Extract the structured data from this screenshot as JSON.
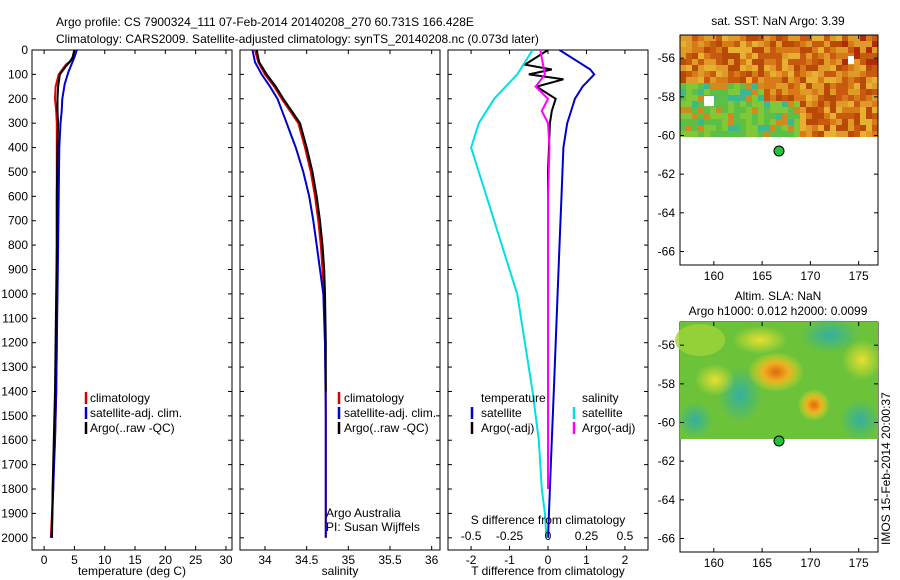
{
  "header": {
    "line1": "Argo profile: CS 7900324_111 07-Feb-2014 20140208_270 60.731S 166.428E",
    "line2": "Climatology: CARS2009. Satellite-adjusted climatology: synTS_20140208.nc (0.073d later)"
  },
  "footer_stamp": "IMOS 15-Feb-2014 20:00:37",
  "chart_data": [
    {
      "type": "line",
      "xlabel": "temperature (deg C)",
      "xlim": [
        -2,
        31
      ],
      "ylim": [
        2050,
        0
      ],
      "x_ticks": [
        0,
        5,
        10,
        15,
        20,
        25,
        30
      ],
      "y_ticks": [
        0,
        100,
        200,
        300,
        400,
        500,
        600,
        700,
        800,
        900,
        1000,
        1100,
        1200,
        1300,
        1400,
        1500,
        1600,
        1700,
        1800,
        1900,
        2000
      ],
      "legend": [
        "climatology",
        "satellite-adj. clim.",
        "Argo(..raw -QC)"
      ],
      "series": [
        {
          "name": "climatology",
          "color": "#dd0000",
          "x": [
            5.0,
            4.6,
            3.6,
            2.4,
            1.9,
            1.8,
            2.0,
            2.1,
            2.1,
            2.1,
            2.1,
            2.1,
            2.1,
            2.0,
            1.9,
            1.8,
            1.6,
            1.5,
            1.3,
            1.1
          ],
          "y": [
            0,
            40,
            60,
            100,
            150,
            200,
            250,
            300,
            400,
            600,
            800,
            1000,
            1200,
            1400,
            1500,
            1600,
            1700,
            1800,
            1900,
            2000
          ]
        },
        {
          "name": "satellite-adj. clim.",
          "color": "#0000cc",
          "x": [
            5.4,
            5.0,
            4.5,
            4.0,
            3.4,
            3.0,
            2.9,
            2.7,
            2.5,
            2.4,
            2.3,
            2.2,
            2.1,
            2.0,
            1.8,
            1.5,
            1.3,
            1.2
          ],
          "y": [
            0,
            30,
            60,
            90,
            140,
            200,
            250,
            300,
            400,
            600,
            800,
            1000,
            1200,
            1400,
            1600,
            1800,
            1950,
            2000
          ]
        },
        {
          "name": "Argo(..raw -QC)",
          "color": "#000000",
          "x": [
            5.0,
            4.7,
            4.2,
            3.5,
            2.6,
            2.3,
            2.2,
            2.2,
            2.3,
            2.2,
            2.1,
            2.1,
            2.0,
            1.9,
            1.8,
            1.6,
            1.4,
            1.3
          ],
          "y": [
            0,
            30,
            50,
            70,
            100,
            150,
            200,
            250,
            300,
            400,
            600,
            800,
            1000,
            1200,
            1400,
            1600,
            1800,
            2000
          ]
        }
      ]
    },
    {
      "type": "line",
      "xlabel": "salinity",
      "xlim": [
        33.7,
        36.1
      ],
      "ylim": [
        2050,
        0
      ],
      "x_ticks": [
        34,
        34.5,
        35,
        35.5,
        36
      ],
      "legend": [
        "climatology",
        "satellite-adj. clim.",
        "Argo(..raw -QC)"
      ],
      "annotation": [
        "Argo Australia",
        "PI: Susan Wijffels"
      ],
      "series": [
        {
          "name": "climatology",
          "color": "#dd0000",
          "x": [
            33.88,
            33.92,
            34.0,
            34.11,
            34.2,
            34.3,
            34.4,
            34.48,
            34.55,
            34.6,
            34.64,
            34.67,
            34.69,
            34.71,
            34.72,
            34.73,
            34.73,
            34.73
          ],
          "y": [
            0,
            50,
            100,
            150,
            200,
            250,
            300,
            400,
            500,
            600,
            700,
            800,
            900,
            1000,
            1200,
            1400,
            1700,
            2000
          ]
        },
        {
          "name": "satellite-adj. clim.",
          "color": "#0000cc",
          "x": [
            33.85,
            33.88,
            33.96,
            34.06,
            34.15,
            34.26,
            34.37,
            34.46,
            34.53,
            34.58,
            34.62,
            34.66,
            34.7,
            34.72,
            34.73,
            34.73
          ],
          "y": [
            0,
            50,
            100,
            150,
            200,
            300,
            400,
            500,
            600,
            700,
            800,
            900,
            1000,
            1200,
            1500,
            2000
          ]
        },
        {
          "name": "Argo(..raw -QC)",
          "color": "#000000",
          "x": [
            33.9,
            33.93,
            34.02,
            34.13,
            34.22,
            34.32,
            34.42,
            34.5,
            34.57,
            34.62,
            34.66,
            34.69,
            34.71,
            34.72,
            34.73,
            34.73
          ],
          "y": [
            0,
            50,
            100,
            150,
            200,
            250,
            300,
            400,
            500,
            600,
            700,
            800,
            900,
            1000,
            1200,
            1400
          ]
        }
      ]
    },
    {
      "type": "line",
      "xlabel": "T difference from climatology",
      "x2label": "S difference from climatology",
      "xlim": [
        -2.6,
        2.6
      ],
      "x_ticks": [
        -2,
        -1,
        0,
        1,
        2
      ],
      "x2_ticks": [
        -0.5,
        -0.25,
        0,
        0.25,
        0.5
      ],
      "x2_tick_labels": [
        "-0.5",
        "-0.25",
        "0",
        "0.25",
        "0.5"
      ],
      "ylim": [
        2050,
        0
      ],
      "legend_groups": [
        {
          "title": "temperature",
          "items": [
            "satellite",
            "Argo(-adj)"
          ]
        },
        {
          "title": "salinity",
          "items": [
            "satellite",
            "Argo(-adj)"
          ]
        }
      ],
      "series": [
        {
          "name": "temperature satellite",
          "color": "#0000cc",
          "x": [
            0.3,
            0.8,
            1.1,
            1.2,
            0.9,
            0.7,
            0.6,
            0.5,
            0.4,
            0.35,
            0.3,
            0.25,
            0.2,
            0.15,
            0.1,
            0.05,
            0.0
          ],
          "y": [
            0,
            50,
            80,
            100,
            150,
            200,
            250,
            300,
            400,
            600,
            800,
            1000,
            1200,
            1400,
            1600,
            1800,
            2000
          ]
        },
        {
          "name": "temperature Argo(-adj)",
          "color": "#000000",
          "x": [
            0.0,
            -0.6,
            0.1,
            -0.5,
            0.4,
            -0.3,
            0.2,
            0.1,
            0.05,
            0.0,
            0.0,
            0.0,
            0.0,
            0.0,
            0.0,
            0.0
          ],
          "y": [
            0,
            60,
            80,
            100,
            120,
            150,
            200,
            250,
            300,
            500,
            800,
            1000,
            1200,
            1400,
            1600,
            1800
          ]
        },
        {
          "name": "salinity satellite",
          "color": "#00e0e0",
          "x": [
            -0.1,
            -0.2,
            -0.35,
            -0.45,
            -0.5,
            -0.45,
            -0.4,
            -0.35,
            -0.3,
            -0.2,
            -0.15,
            -0.1,
            -0.06,
            -0.04,
            -0.02,
            -0.01
          ],
          "y": [
            0,
            100,
            200,
            300,
            400,
            500,
            600,
            700,
            800,
            1000,
            1200,
            1400,
            1600,
            1800,
            1900,
            2000
          ]
        },
        {
          "name": "salinity Argo(-adj)",
          "color": "#ff00ff",
          "x": [
            -0.05,
            -0.02,
            -0.08,
            0.0,
            -0.04,
            0.0,
            0.01,
            0.0,
            0.0,
            0.0,
            0.0,
            0.0,
            0.0
          ],
          "y": [
            0,
            100,
            150,
            200,
            250,
            300,
            400,
            600,
            800,
            1000,
            1200,
            1500,
            1800
          ]
        }
      ]
    },
    {
      "type": "heatmap",
      "title": "sat. SST: NaN Argo: 3.39",
      "xlim": [
        156.5,
        177
      ],
      "ylim": [
        -66.7,
        -54.8
      ],
      "x_ticks": [
        160,
        165,
        170,
        175
      ],
      "y_ticks": [
        -56,
        -58,
        -60,
        -62,
        -64,
        -66
      ],
      "marker": {
        "lon": 166.428,
        "lat": -60.731
      }
    },
    {
      "type": "heatmap",
      "title": "Altim. SLA: NaN",
      "subtitle": "Argo h1000: 0.012 h2000: 0.0099",
      "xlim": [
        156.5,
        177
      ],
      "ylim": [
        -66.7,
        -54.8
      ],
      "x_ticks": [
        160,
        165,
        170,
        175
      ],
      "y_ticks": [
        -56,
        -58,
        -60,
        -62,
        -64,
        -66
      ],
      "marker": {
        "lon": 166.428,
        "lat": -60.731
      }
    }
  ]
}
